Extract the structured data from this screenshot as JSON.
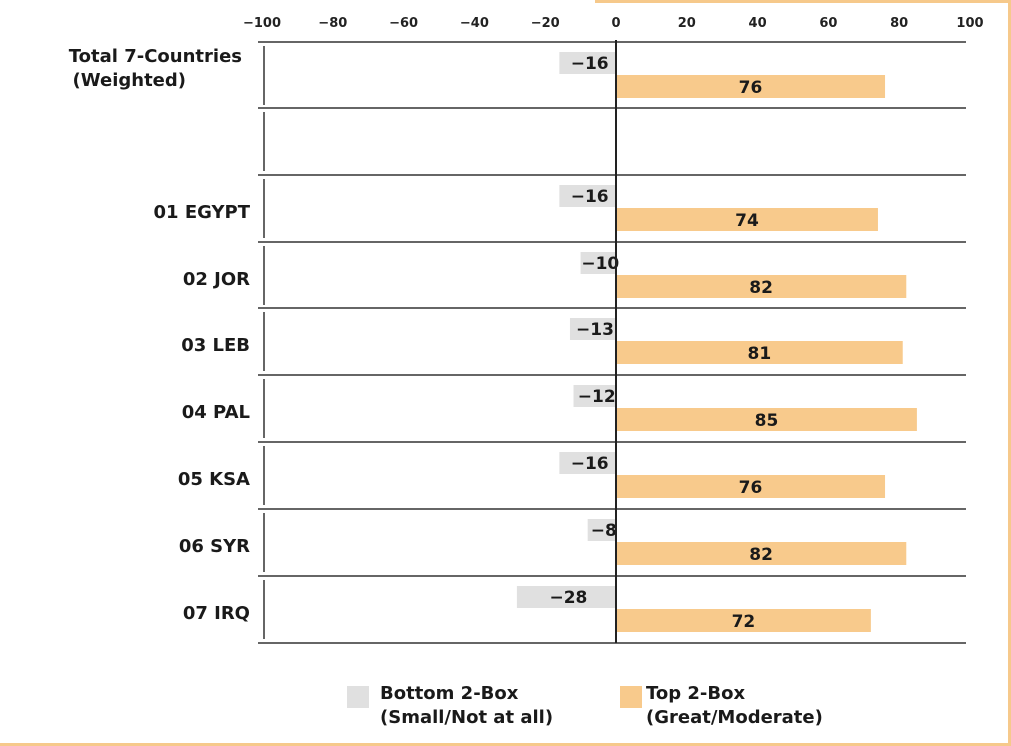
{
  "chart_data": {
    "type": "bar",
    "orientation": "horizontal",
    "categories": [
      "Total 7-Countries (Weighted)",
      "",
      "01 EGYPT",
      "02 JOR",
      "03 LEB",
      "04 PAL",
      "05 KSA",
      "06 SYR",
      "07 IRQ"
    ],
    "category_lines": [
      [
        "Total 7-Countries",
        "(Weighted)"
      ],
      [],
      [
        "01 EGYPT"
      ],
      [
        "02 JOR"
      ],
      [
        "03 LEB"
      ],
      [
        "04 PAL"
      ],
      [
        "05 KSA"
      ],
      [
        "06 SYR"
      ],
      [
        "07 IRQ"
      ]
    ],
    "series": [
      {
        "name": "Bottom 2-Box (Small/Not at all)",
        "values": [
          -16,
          null,
          -16,
          -10,
          -13,
          -12,
          -16,
          -8,
          -28
        ],
        "color": "#e0e0e0"
      },
      {
        "name": "Top 2-Box (Great/Moderate)",
        "values": [
          76,
          null,
          74,
          82,
          81,
          85,
          76,
          82,
          72
        ],
        "color": "#f8ca8c"
      }
    ],
    "xlim": [
      -100,
      100
    ],
    "xticks": [
      -100,
      -80,
      -60,
      -40,
      -20,
      0,
      20,
      40,
      60,
      80,
      100
    ],
    "legend_position": "bottom",
    "title": "",
    "xlabel": "",
    "ylabel": ""
  },
  "legend": {
    "bottom": {
      "line1": "Bottom 2-Box",
      "line2": "(Small/Not at all)",
      "color": "#e0e0e0"
    },
    "top": {
      "line1": "Top 2-Box",
      "line2": "(Great/Moderate)",
      "color": "#f8ca8c"
    }
  }
}
